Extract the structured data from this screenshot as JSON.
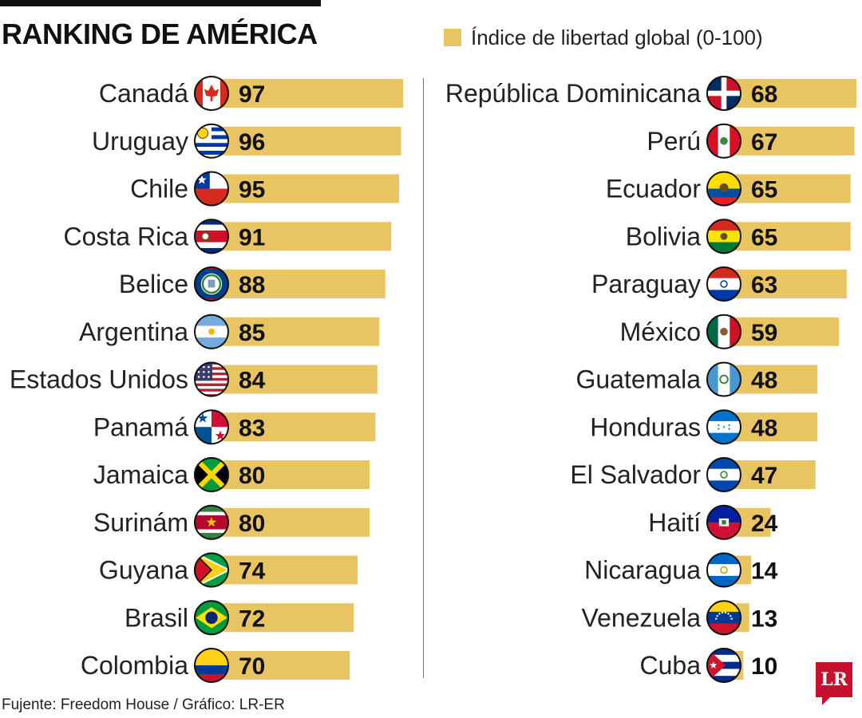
{
  "title": "RANKING DE AMÉRICA",
  "legend": {
    "label": "Índice de libertad global (0-100)",
    "color": "#e8c462"
  },
  "source": "Fujente: Freedom House / Gráfico: LR-ER",
  "logo": {
    "text": "LR",
    "color": "#c8102e"
  },
  "chart_data": {
    "type": "bar",
    "orientation": "horizontal",
    "title": "RANKING DE AMÉRICA",
    "series_name": "Índice de libertad global (0-100)",
    "xlim": [
      0,
      100
    ],
    "bar_color": "#e8c462",
    "columns": [
      {
        "categories": [
          "Canadá",
          "Uruguay",
          "Chile",
          "Costa Rica",
          "Belice",
          "Argentina",
          "Estados Unidos",
          "Panamá",
          "Jamaica",
          "Surinám",
          "Guyana",
          "Brasil",
          "Colombia"
        ],
        "values": [
          97,
          96,
          95,
          91,
          88,
          85,
          84,
          83,
          80,
          80,
          74,
          72,
          70
        ],
        "flags": [
          "canada-flag-icon",
          "uruguay-flag-icon",
          "chile-flag-icon",
          "costa-rica-flag-icon",
          "belize-flag-icon",
          "argentina-flag-icon",
          "usa-flag-icon",
          "panama-flag-icon",
          "jamaica-flag-icon",
          "suriname-flag-icon",
          "guyana-flag-icon",
          "brazil-flag-icon",
          "colombia-flag-icon"
        ]
      },
      {
        "categories": [
          "República Dominicana",
          "Perú",
          "Ecuador",
          "Bolivia",
          "Paraguay",
          "México",
          "Guatemala",
          "Honduras",
          "El Salvador",
          "Haití",
          "Nicaragua",
          "Venezuela",
          "Cuba"
        ],
        "values": [
          68,
          67,
          65,
          65,
          63,
          59,
          48,
          48,
          47,
          24,
          14,
          13,
          10
        ],
        "flags": [
          "dominican-republic-flag-icon",
          "peru-flag-icon",
          "ecuador-flag-icon",
          "bolivia-flag-icon",
          "paraguay-flag-icon",
          "mexico-flag-icon",
          "guatemala-flag-icon",
          "honduras-flag-icon",
          "el-salvador-flag-icon",
          "haiti-flag-icon",
          "nicaragua-flag-icon",
          "venezuela-flag-icon",
          "cuba-flag-icon"
        ]
      }
    ]
  }
}
